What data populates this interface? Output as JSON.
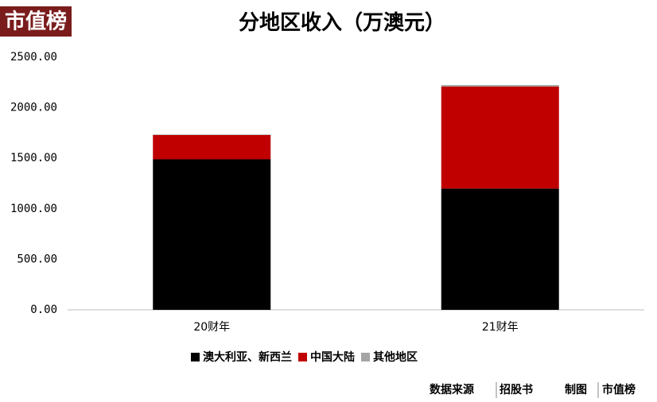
{
  "logo": "市值榜",
  "chart_data": {
    "type": "stacked_bar",
    "title": "分地区收入（万澳元）",
    "categories": [
      "20财年",
      "21财年"
    ],
    "series": [
      {
        "name": "澳大利亚、新西兰",
        "color": "#000000",
        "values": [
          1490,
          1200
        ]
      },
      {
        "name": "中国大陆",
        "color": "#c00000",
        "values": [
          240,
          1010
        ]
      },
      {
        "name": "其他地区",
        "color": "#a5a5a5",
        "values": [
          5,
          15
        ]
      }
    ],
    "ylim": [
      0,
      2500
    ],
    "yticks": [
      {
        "value": 0,
        "label": "0.00"
      },
      {
        "value": 500,
        "label": "500.00"
      },
      {
        "value": 1000,
        "label": "1000.00"
      },
      {
        "value": 1500,
        "label": "1500.00"
      },
      {
        "value": 2000,
        "label": "2000.00"
      },
      {
        "value": 2500,
        "label": "2500.00"
      }
    ],
    "legend": "bottom"
  },
  "footer": {
    "source_label": "数据来源",
    "source": "招股书",
    "maker_label": "制图",
    "maker": "市值榜"
  }
}
